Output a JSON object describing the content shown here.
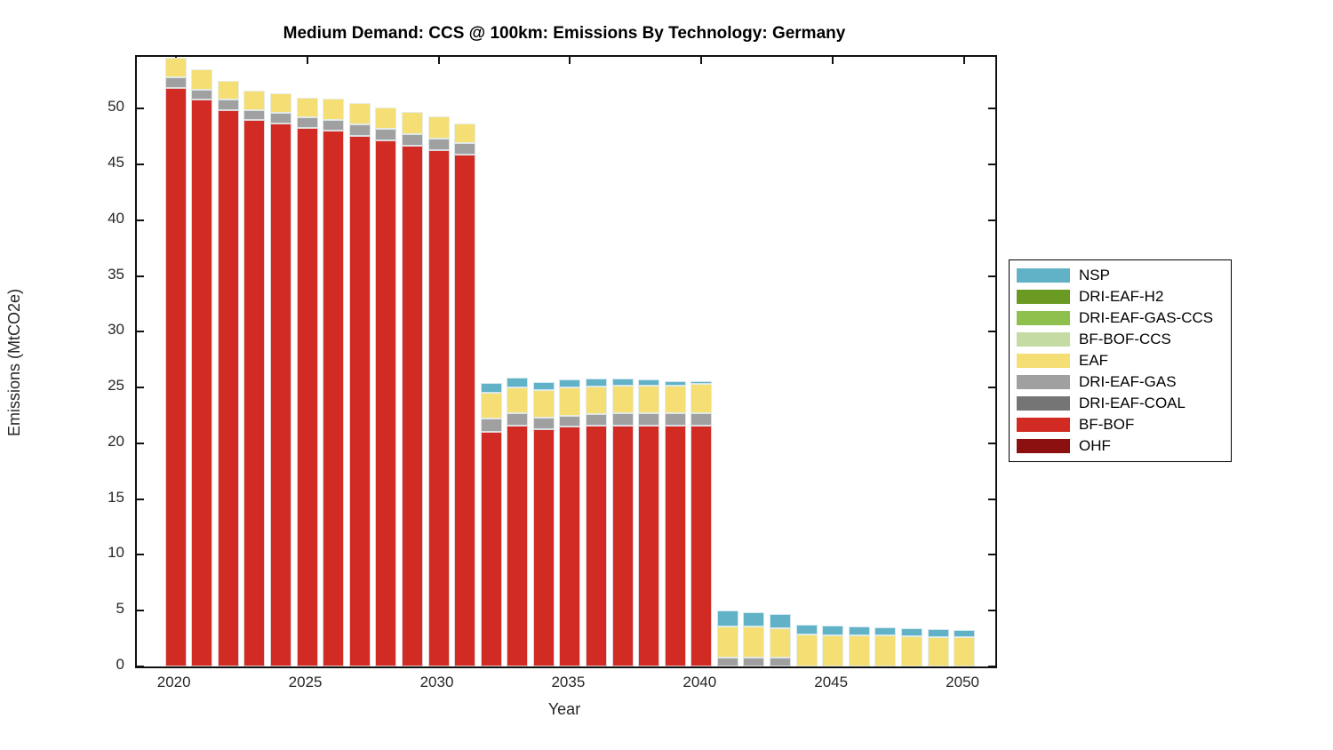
{
  "title": "Medium Demand: CCS @ 100km: Emissions By Technology: Germany",
  "axes": {
    "xlabel": "Year",
    "ylabel": "Emissions (MtCO2e)",
    "yticks": [
      0,
      5,
      10,
      15,
      20,
      25,
      30,
      35,
      40,
      45,
      50
    ],
    "xticks": [
      2020,
      2025,
      2030,
      2035,
      2040,
      2045,
      2050
    ]
  },
  "legend": {
    "note": "legend lists series top-to-bottom in reverse stacking order",
    "order_top_to_bottom": [
      "NSP",
      "DRI-EAF-H2",
      "DRI-EAF-GAS-CCS",
      "BF-BOF-CCS",
      "EAF",
      "DRI-EAF-GAS",
      "DRI-EAF-COAL",
      "BF-BOF",
      "OHF"
    ]
  },
  "chart_data": {
    "type": "bar",
    "stacked": true,
    "title": "Medium Demand: CCS @ 100km: Emissions By Technology: Germany",
    "xlabel": "Year",
    "ylabel": "Emissions (MtCO2e)",
    "xlim": [
      2018.5,
      2051.2
    ],
    "ylim": [
      0,
      54.65
    ],
    "grid": false,
    "legend_position": "outside-right",
    "x": [
      2020,
      2021,
      2022,
      2023,
      2024,
      2025,
      2026,
      2027,
      2028,
      2029,
      2030,
      2031,
      2032,
      2033,
      2034,
      2035,
      2036,
      2037,
      2038,
      2039,
      2040,
      2041,
      2042,
      2043,
      2044,
      2045,
      2046,
      2047,
      2048,
      2049,
      2050
    ],
    "series": [
      {
        "name": "OHF",
        "color": "#8C1010",
        "values": [
          0,
          0,
          0,
          0,
          0,
          0,
          0,
          0,
          0,
          0,
          0,
          0,
          0,
          0,
          0,
          0,
          0,
          0,
          0,
          0,
          0,
          0,
          0,
          0,
          0,
          0,
          0,
          0,
          0,
          0,
          0
        ]
      },
      {
        "name": "BF-BOF",
        "color": "#D22B24",
        "values": [
          51.9,
          50.8,
          49.9,
          49.0,
          48.7,
          48.3,
          48.0,
          47.6,
          47.2,
          46.7,
          46.3,
          45.9,
          21.0,
          21.6,
          21.3,
          21.5,
          21.6,
          21.6,
          21.6,
          21.6,
          21.6,
          0,
          0,
          0,
          0,
          0,
          0,
          0,
          0,
          0,
          0
        ]
      },
      {
        "name": "DRI-EAF-COAL",
        "color": "#757575",
        "values": [
          0,
          0,
          0,
          0,
          0,
          0,
          0,
          0,
          0,
          0,
          0,
          0,
          0,
          0,
          0,
          0,
          0,
          0,
          0,
          0,
          0,
          0,
          0,
          0,
          0,
          0,
          0,
          0,
          0,
          0,
          0
        ]
      },
      {
        "name": "DRI-EAF-GAS",
        "color": "#A0A0A0",
        "values": [
          0.9,
          0.9,
          0.9,
          0.9,
          0.9,
          0.9,
          1.0,
          1.0,
          1.0,
          1.0,
          1.0,
          1.0,
          1.2,
          1.1,
          1.0,
          1.0,
          1.0,
          1.1,
          1.1,
          1.1,
          1.1,
          0.8,
          0.8,
          0.8,
          0,
          0,
          0,
          0,
          0,
          0,
          0
        ]
      },
      {
        "name": "EAF",
        "color": "#F5DE73",
        "values": [
          1.8,
          1.8,
          1.7,
          1.7,
          1.8,
          1.8,
          1.9,
          1.9,
          1.9,
          2.0,
          2.0,
          1.8,
          2.3,
          2.3,
          2.5,
          2.5,
          2.5,
          2.5,
          2.5,
          2.5,
          2.6,
          2.8,
          2.8,
          2.65,
          2.85,
          2.8,
          2.78,
          2.75,
          2.72,
          2.65,
          2.6
        ]
      },
      {
        "name": "BF-BOF-CCS",
        "color": "#C4DBA4",
        "values": [
          0,
          0,
          0,
          0,
          0,
          0,
          0,
          0,
          0,
          0,
          0,
          0,
          0,
          0,
          0,
          0,
          0,
          0,
          0,
          0,
          0,
          0,
          0,
          0,
          0,
          0,
          0,
          0,
          0,
          0,
          0
        ]
      },
      {
        "name": "DRI-EAF-GAS-CCS",
        "color": "#8FBF4D",
        "values": [
          0,
          0,
          0,
          0,
          0,
          0,
          0,
          0,
          0,
          0,
          0,
          0,
          0,
          0,
          0,
          0,
          0,
          0,
          0,
          0,
          0,
          0,
          0,
          0,
          0,
          0,
          0,
          0,
          0,
          0,
          0
        ]
      },
      {
        "name": "DRI-EAF-H2",
        "color": "#6A9A22",
        "values": [
          0,
          0,
          0,
          0,
          0,
          0,
          0,
          0,
          0,
          0,
          0,
          0,
          0,
          0,
          0,
          0,
          0,
          0,
          0,
          0,
          0,
          0,
          0,
          0,
          0,
          0,
          0,
          0,
          0,
          0,
          0
        ]
      },
      {
        "name": "NSP",
        "color": "#62B2C7",
        "values": [
          0,
          0,
          0,
          0,
          0,
          0,
          0,
          0,
          0,
          0,
          0,
          0,
          0.9,
          0.9,
          0.7,
          0.7,
          0.7,
          0.6,
          0.5,
          0.4,
          0.3,
          1.4,
          1.3,
          1.25,
          0.9,
          0.85,
          0.78,
          0.77,
          0.72,
          0.68,
          0.65
        ]
      }
    ]
  }
}
